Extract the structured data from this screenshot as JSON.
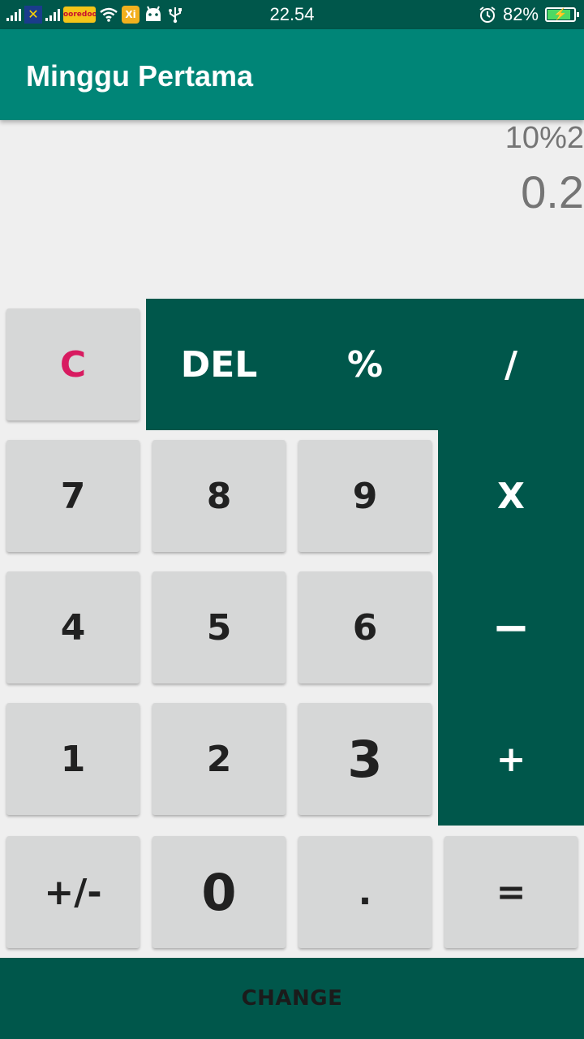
{
  "status_bar": {
    "time": "22.54",
    "battery": "82%",
    "battery_level": 0.82,
    "carrier_badge": "✕",
    "carrier_badge2": "ooredoo",
    "app_badge": "Xi",
    "icons": [
      "signal-icon",
      "carrier-icon",
      "signal-icon",
      "carrier-logo-icon",
      "wifi-icon",
      "app-icon",
      "android-icon",
      "usb-icon",
      "alarm-icon",
      "battery-icon"
    ]
  },
  "app_bar": {
    "title": "Minggu Pertama"
  },
  "display": {
    "expression": "10%2",
    "result": "0.2"
  },
  "keypad": {
    "clear": "C",
    "delete": "DEL",
    "percent": "%",
    "divide": "/",
    "seven": "7",
    "eight": "8",
    "nine": "9",
    "multiply": "X",
    "four": "4",
    "five": "5",
    "six": "6",
    "minus": "−",
    "one": "1",
    "two": "2",
    "three": "3",
    "plus": "+",
    "negate": "+/-",
    "zero": "0",
    "decimal": ".",
    "equals": "="
  },
  "change_button": "CHANGE",
  "colors": {
    "primary": "#008577",
    "primary_dark": "#00574b",
    "accent": "#d81b60",
    "button_gray": "#d6d7d7",
    "background": "#efefef"
  }
}
